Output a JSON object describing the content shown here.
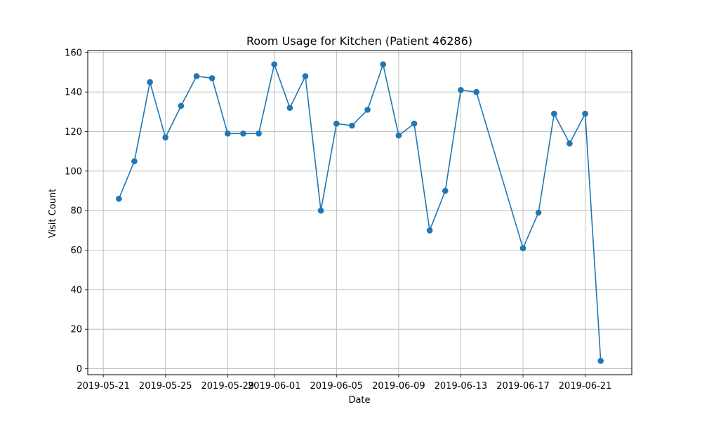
{
  "chart_data": {
    "type": "line",
    "title": "Room Usage for Kitchen (Patient 46286)",
    "xlabel": "Date",
    "ylabel": "Visit Count",
    "grid": true,
    "series_color": "#1f77b4",
    "xlim": [
      "2019-05-20",
      "2019-06-24"
    ],
    "ylim": [
      -3,
      161
    ],
    "x_ticks": [
      "2019-05-21",
      "2019-05-25",
      "2019-05-29",
      "2019-06-01",
      "2019-06-05",
      "2019-06-09",
      "2019-06-13",
      "2019-06-17",
      "2019-06-21"
    ],
    "y_ticks": [
      0,
      20,
      40,
      60,
      80,
      100,
      120,
      140,
      160
    ],
    "points": [
      {
        "x": "2019-05-22",
        "y": 86
      },
      {
        "x": "2019-05-23",
        "y": 105
      },
      {
        "x": "2019-05-24",
        "y": 145
      },
      {
        "x": "2019-05-25",
        "y": 117
      },
      {
        "x": "2019-05-26",
        "y": 133
      },
      {
        "x": "2019-05-27",
        "y": 148
      },
      {
        "x": "2019-05-28",
        "y": 147
      },
      {
        "x": "2019-05-29",
        "y": 119
      },
      {
        "x": "2019-05-30",
        "y": 119
      },
      {
        "x": "2019-05-31",
        "y": 119
      },
      {
        "x": "2019-06-01",
        "y": 154
      },
      {
        "x": "2019-06-02",
        "y": 132
      },
      {
        "x": "2019-06-03",
        "y": 148
      },
      {
        "x": "2019-06-04",
        "y": 80
      },
      {
        "x": "2019-06-05",
        "y": 124
      },
      {
        "x": "2019-06-06",
        "y": 123
      },
      {
        "x": "2019-06-07",
        "y": 131
      },
      {
        "x": "2019-06-08",
        "y": 154
      },
      {
        "x": "2019-06-09",
        "y": 118
      },
      {
        "x": "2019-06-10",
        "y": 124
      },
      {
        "x": "2019-06-11",
        "y": 70
      },
      {
        "x": "2019-06-12",
        "y": 90
      },
      {
        "x": "2019-06-13",
        "y": 141
      },
      {
        "x": "2019-06-14",
        "y": 140
      },
      {
        "x": "2019-06-17",
        "y": 61
      },
      {
        "x": "2019-06-18",
        "y": 79
      },
      {
        "x": "2019-06-19",
        "y": 129
      },
      {
        "x": "2019-06-20",
        "y": 114
      },
      {
        "x": "2019-06-21",
        "y": 129
      },
      {
        "x": "2019-06-22",
        "y": 4
      }
    ]
  }
}
